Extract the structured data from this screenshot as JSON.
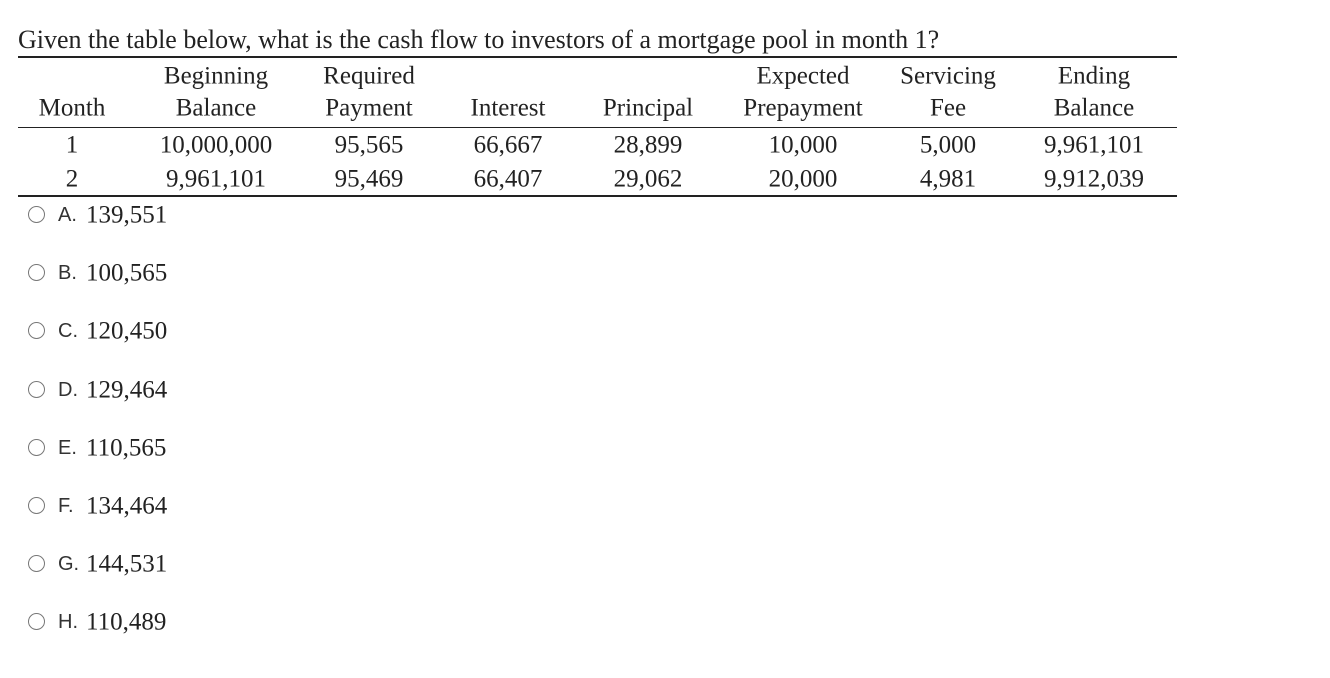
{
  "question": "Given the table below, what is the cash flow to investors of a mortgage pool in month 1?",
  "table": {
    "headers": [
      [
        "Month"
      ],
      [
        "Beginning",
        "Balance"
      ],
      [
        "Required",
        "Payment"
      ],
      [
        "Interest"
      ],
      [
        "Principal"
      ],
      [
        "Expected",
        "Prepayment"
      ],
      [
        "Servicing",
        "Fee"
      ],
      [
        "Ending",
        "Balance"
      ]
    ],
    "rows": [
      [
        "1",
        "10,000,000",
        "95,565",
        "66,667",
        "28,899",
        "10,000",
        "5,000",
        "9,961,101"
      ],
      [
        "2",
        "9,961,101",
        "95,469",
        "66,407",
        "29,062",
        "20,000",
        "4,981",
        "9,912,039"
      ]
    ]
  },
  "options": [
    {
      "letter": "A.",
      "text": "139,551"
    },
    {
      "letter": "B.",
      "text": "100,565"
    },
    {
      "letter": "C.",
      "text": "120,450"
    },
    {
      "letter": "D.",
      "text": "129,464"
    },
    {
      "letter": "E.",
      "text": "110,565"
    },
    {
      "letter": "F.",
      "text": "134,464"
    },
    {
      "letter": "G.",
      "text": "144,531"
    },
    {
      "letter": "H.",
      "text": "110,489"
    }
  ]
}
